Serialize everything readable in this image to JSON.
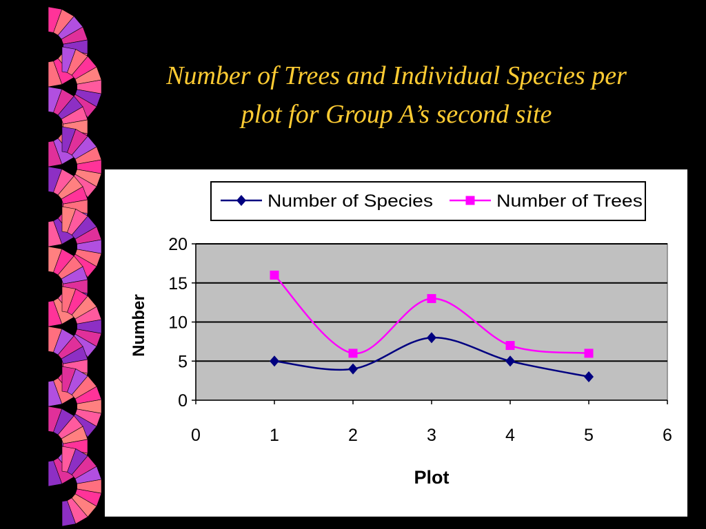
{
  "slide": {
    "title_line1": "Number of Trees and Individual Species per",
    "title_line2": "plot for Group A’s second site"
  },
  "colors": {
    "background": "#000000",
    "title": "#ffcc33",
    "plot_area": "#c0c0c0",
    "species": "#000080",
    "trees": "#ff00ff"
  },
  "chart_data": {
    "type": "line",
    "smoothed": true,
    "title": "",
    "xlabel": "Plot",
    "ylabel": "Number",
    "xlim": [
      0,
      6
    ],
    "ylim": [
      0,
      20
    ],
    "x_ticks": [
      0,
      1,
      2,
      3,
      4,
      5,
      6
    ],
    "y_ticks": [
      0,
      5,
      10,
      15,
      20
    ],
    "grid": "horizontal",
    "legend_position": "top",
    "series": [
      {
        "name": "Number of Species",
        "marker": "diamond",
        "color": "#000080",
        "x": [
          1,
          2,
          3,
          4,
          5
        ],
        "y": [
          5,
          4,
          8,
          5,
          3
        ]
      },
      {
        "name": "Number of Trees",
        "marker": "square",
        "color": "#ff00ff",
        "x": [
          1,
          2,
          3,
          4,
          5
        ],
        "y": [
          16,
          6,
          13,
          7,
          6
        ]
      }
    ]
  }
}
